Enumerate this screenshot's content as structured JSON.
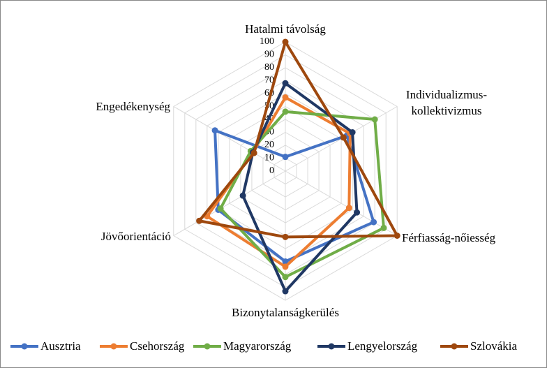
{
  "chart_data": {
    "type": "radar",
    "categories": [
      "Hatalmi távolság",
      "Individualizmus-kollektivizmus",
      "Férfiasság-nőiesség",
      "Bizonytalanságkerülés",
      "Jövőorientáció",
      "Engedékenység"
    ],
    "series": [
      {
        "name": "Ausztria",
        "color": "#4472c4",
        "values": [
          11,
          55,
          79,
          70,
          60,
          63
        ]
      },
      {
        "name": "Csehország",
        "color": "#ed7d31",
        "values": [
          57,
          58,
          57,
          74,
          70,
          29
        ]
      },
      {
        "name": "Magyarország",
        "color": "#70ad47",
        "values": [
          46,
          80,
          88,
          82,
          58,
          31
        ]
      },
      {
        "name": "Lengyelország",
        "color": "#203864",
        "values": [
          68,
          60,
          64,
          93,
          38,
          29
        ]
      },
      {
        "name": "Szlovákia",
        "color": "#9e480e",
        "values": [
          100,
          52,
          100,
          51,
          77,
          28
        ]
      }
    ],
    "ylim": [
      0,
      100
    ],
    "yticks": [
      0,
      10,
      20,
      30,
      40,
      50,
      60,
      70,
      80,
      90,
      100
    ],
    "grid": true,
    "legend": "bottom"
  }
}
